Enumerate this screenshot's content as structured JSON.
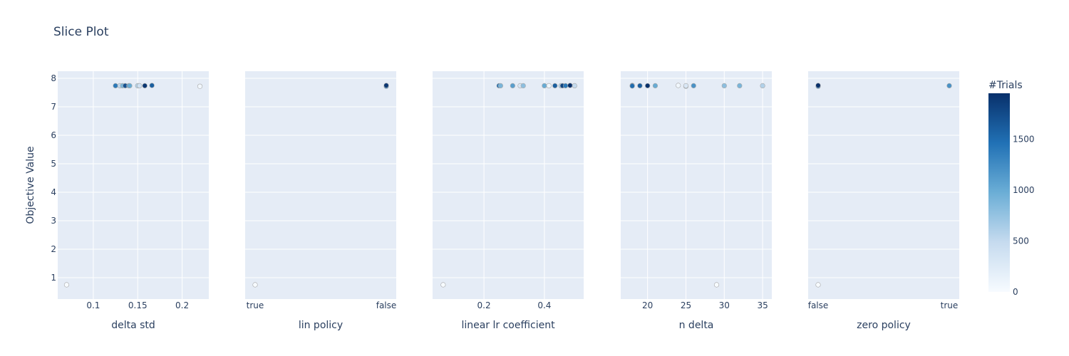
{
  "title": "Slice Plot",
  "ylabel": "Objective Value",
  "colorbar": {
    "title": "#Trials",
    "ticks": [
      0,
      500,
      1000,
      1500
    ],
    "range": [
      0,
      1950
    ],
    "colors": [
      "#f7fbff",
      "#c6dbef",
      "#6baed6",
      "#2171b5",
      "#08306b"
    ]
  },
  "chart_data": {
    "type": "scatter",
    "ylim": [
      0.25,
      8.25
    ],
    "yticks": [
      1,
      2,
      3,
      4,
      5,
      6,
      7,
      8
    ],
    "grid": true,
    "panels": [
      {
        "xlabel": "delta std",
        "xtype": "linear",
        "xlim": [
          0.06,
          0.23
        ],
        "xticks": [
          0.1,
          0.15,
          0.2
        ],
        "xticklabels": [
          "0.1",
          "0.15",
          "0.2"
        ],
        "points": [
          {
            "x": 0.07,
            "y": 0.75,
            "trial": 0
          },
          {
            "x": 0.22,
            "y": 7.72,
            "trial": 60
          },
          {
            "x": 0.125,
            "y": 7.74,
            "trial": 1400
          },
          {
            "x": 0.13,
            "y": 7.74,
            "trial": 500
          },
          {
            "x": 0.133,
            "y": 7.74,
            "trial": 900
          },
          {
            "x": 0.136,
            "y": 7.74,
            "trial": 1700
          },
          {
            "x": 0.14,
            "y": 7.74,
            "trial": 1200
          },
          {
            "x": 0.141,
            "y": 7.74,
            "trial": 1000
          },
          {
            "x": 0.15,
            "y": 7.74,
            "trial": 600
          },
          {
            "x": 0.152,
            "y": 7.74,
            "trial": 400
          },
          {
            "x": 0.158,
            "y": 7.74,
            "trial": 1900
          },
          {
            "x": 0.166,
            "y": 7.75,
            "trial": 1600
          }
        ]
      },
      {
        "xlabel": "lin policy",
        "xtype": "category",
        "categories": [
          "true",
          "false"
        ],
        "points": [
          {
            "x": "true",
            "y": 0.75,
            "trial": 0
          },
          {
            "x": "false",
            "y": 7.72,
            "trial": 1300
          },
          {
            "x": "false",
            "y": 7.75,
            "trial": 1900
          }
        ]
      },
      {
        "xlabel": "linear lr coefficient",
        "xtype": "linear",
        "xlim": [
          0.03,
          0.53
        ],
        "xticks": [
          0.2,
          0.4
        ],
        "xticklabels": [
          "0.2",
          "0.4"
        ],
        "points": [
          {
            "x": 0.065,
            "y": 0.75,
            "trial": 0
          },
          {
            "x": 0.25,
            "y": 7.74,
            "trial": 1500
          },
          {
            "x": 0.255,
            "y": 7.74,
            "trial": 900
          },
          {
            "x": 0.295,
            "y": 7.74,
            "trial": 1100
          },
          {
            "x": 0.32,
            "y": 7.74,
            "trial": 300
          },
          {
            "x": 0.33,
            "y": 7.74,
            "trial": 800
          },
          {
            "x": 0.4,
            "y": 7.74,
            "trial": 1000
          },
          {
            "x": 0.415,
            "y": 7.74,
            "trial": 80
          },
          {
            "x": 0.435,
            "y": 7.74,
            "trial": 1600
          },
          {
            "x": 0.455,
            "y": 7.74,
            "trial": 600
          },
          {
            "x": 0.46,
            "y": 7.74,
            "trial": 1800
          },
          {
            "x": 0.47,
            "y": 7.74,
            "trial": 1400
          },
          {
            "x": 0.485,
            "y": 7.75,
            "trial": 1950
          },
          {
            "x": 0.5,
            "y": 7.74,
            "trial": 500
          }
        ]
      },
      {
        "xlabel": "n delta",
        "xtype": "linear",
        "xlim": [
          16.5,
          36.2
        ],
        "xticks": [
          20,
          25,
          30,
          35
        ],
        "xticklabels": [
          "20",
          "25",
          "30",
          "35"
        ],
        "points": [
          {
            "x": 18,
            "y": 7.75,
            "trial": 1800
          },
          {
            "x": 18,
            "y": 7.73,
            "trial": 1500
          },
          {
            "x": 19,
            "y": 7.74,
            "trial": 1600
          },
          {
            "x": 20,
            "y": 7.74,
            "trial": 1950
          },
          {
            "x": 21,
            "y": 7.74,
            "trial": 1000
          },
          {
            "x": 24,
            "y": 7.75,
            "trial": 60
          },
          {
            "x": 25,
            "y": 7.72,
            "trial": 700
          },
          {
            "x": 25,
            "y": 7.74,
            "trial": 300
          },
          {
            "x": 26,
            "y": 7.74,
            "trial": 1200
          },
          {
            "x": 29,
            "y": 0.75,
            "trial": 0
          },
          {
            "x": 30,
            "y": 7.74,
            "trial": 800
          },
          {
            "x": 32,
            "y": 7.74,
            "trial": 900
          },
          {
            "x": 35,
            "y": 7.74,
            "trial": 600
          }
        ]
      },
      {
        "xlabel": "zero policy",
        "xtype": "category",
        "categories": [
          "false",
          "true"
        ],
        "points": [
          {
            "x": "false",
            "y": 0.75,
            "trial": 0
          },
          {
            "x": "false",
            "y": 7.72,
            "trial": 1400
          },
          {
            "x": "false",
            "y": 7.75,
            "trial": 1950
          },
          {
            "x": "true",
            "y": 7.74,
            "trial": 1200
          }
        ]
      }
    ]
  }
}
